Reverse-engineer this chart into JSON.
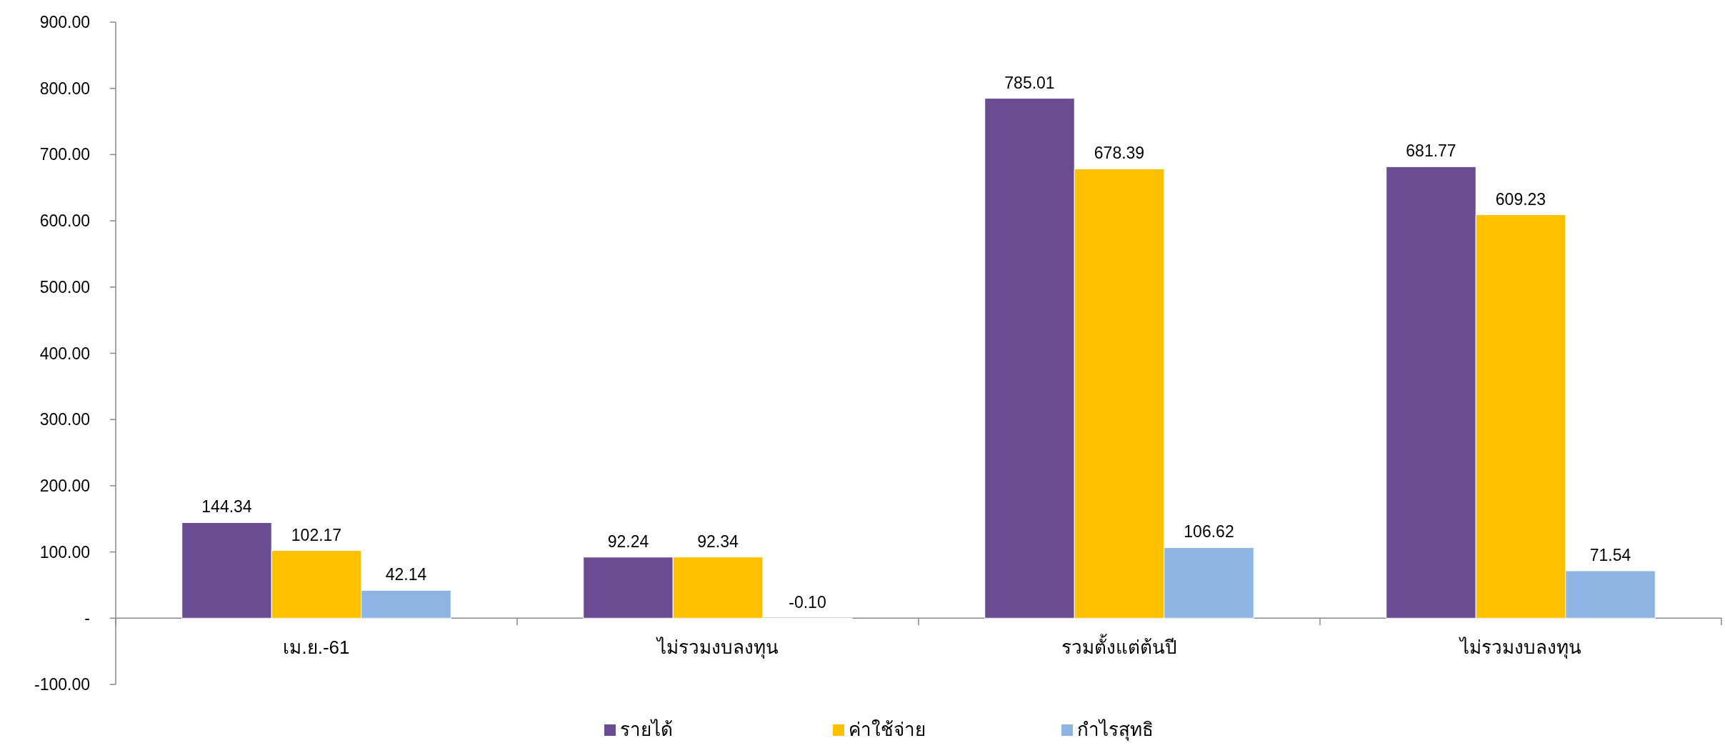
{
  "chart_data": {
    "type": "bar",
    "categories": [
      "เม.ย.-61",
      "ไม่รวมงบลงทุน",
      "รวมตั้งแต่ต้นปี",
      "ไม่รวมงบลงทุน"
    ],
    "series": [
      {
        "name": "รายได้",
        "color": "#6a4c93",
        "values": [
          144.34,
          92.24,
          785.01,
          681.77
        ],
        "value_labels": [
          "144.34",
          "92.24",
          "785.01",
          "681.77"
        ]
      },
      {
        "name": "ค่าใช้จ่าย",
        "color": "#ffc000",
        "values": [
          102.17,
          92.34,
          678.39,
          609.23
        ],
        "value_labels": [
          "102.17",
          "92.34",
          "678.39",
          "609.23"
        ]
      },
      {
        "name": "กำไรสุทธิ",
        "color": "#8db4e2",
        "values": [
          42.14,
          -0.1,
          106.62,
          71.54
        ],
        "value_labels": [
          "42.14",
          "-0.10",
          "106.62",
          "71.54"
        ]
      }
    ],
    "ylim": [
      -100,
      900
    ],
    "yticks": [
      {
        "value": -100,
        "label": "-100.00"
      },
      {
        "value": 0,
        "label": "-"
      },
      {
        "value": 100,
        "label": "100.00"
      },
      {
        "value": 200,
        "label": "200.00"
      },
      {
        "value": 300,
        "label": "300.00"
      },
      {
        "value": 400,
        "label": "400.00"
      },
      {
        "value": 500,
        "label": "500.00"
      },
      {
        "value": 600,
        "label": "600.00"
      },
      {
        "value": 700,
        "label": "700.00"
      },
      {
        "value": 800,
        "label": "800.00"
      },
      {
        "value": 900,
        "label": "900.00"
      }
    ],
    "grid": false,
    "legend": "bottom"
  }
}
